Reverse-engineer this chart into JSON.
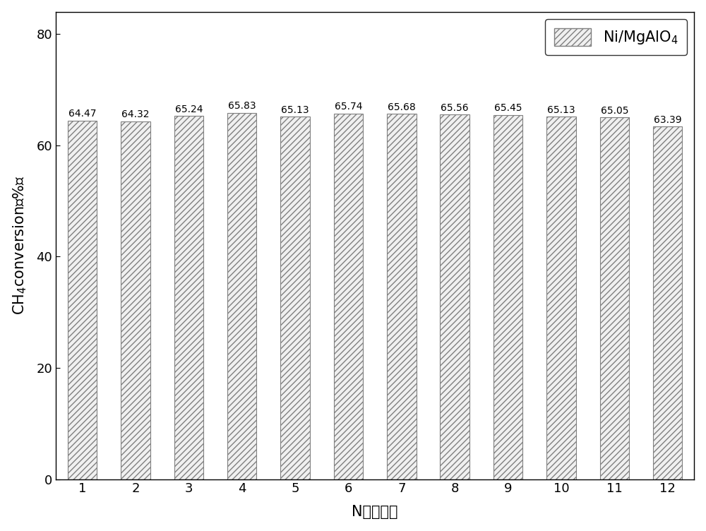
{
  "categories": [
    1,
    2,
    3,
    4,
    5,
    6,
    7,
    8,
    9,
    10,
    11,
    12
  ],
  "values": [
    64.47,
    64.32,
    65.24,
    65.83,
    65.13,
    65.74,
    65.68,
    65.56,
    65.45,
    65.13,
    65.05,
    63.39
  ],
  "bar_facecolor": "#f0f0f0",
  "bar_edge_color": "#808080",
  "hatch": "////",
  "hatch_color": "#808080",
  "xlabel": "N（次数）",
  "ylabel": "CH$_4$conversion（%）",
  "ylim": [
    0,
    84
  ],
  "yticks": [
    0,
    20,
    40,
    60,
    80
  ],
  "legend_label": "Ni/MgAlO$_4$",
  "label_fontsize": 15,
  "tick_fontsize": 13,
  "annotation_fontsize": 10,
  "background_color": "#ffffff",
  "bar_width": 0.55
}
